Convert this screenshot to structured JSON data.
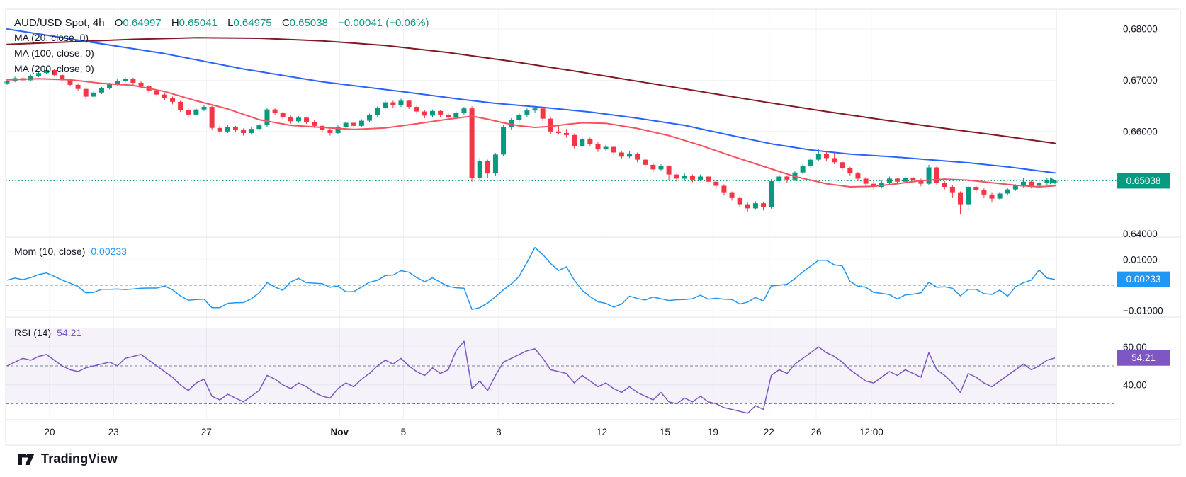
{
  "header": {
    "title": "AUD/USD Spot, 4h",
    "open_label": "O",
    "open": "0.64997",
    "high_label": "H",
    "high": "0.65041",
    "low_label": "L",
    "low": "0.64975",
    "close_label": "C",
    "close": "0.65038",
    "change": "+0.00041 (+0.06%)"
  },
  "overlays": {
    "ma20_label": "MA (20, close, 0)",
    "ma100_label": "MA (100, close, 0)",
    "ma200_label": "MA (200, close, 0)"
  },
  "momentum_legend": {
    "label": "Mom (10, close)",
    "value": "0.00233"
  },
  "rsi_legend": {
    "label": "RSI (14)",
    "value": "54.21"
  },
  "watermark": {
    "label": "TradingView"
  },
  "colors": {
    "up": "#089981",
    "down": "#F23645",
    "ma20": "#F7525F",
    "ma100": "#2962FF",
    "ma200": "#801922",
    "momentum": "#2196F3",
    "rsi": "#7E57C2",
    "rsi_band": "rgba(126,87,194,0.08)",
    "grid": "#F0F2F6",
    "border": "#E0E3EB",
    "dashed": "#758696",
    "dotted": "#089981",
    "axis_text": "#131722",
    "badge_text": "#FFFFFF",
    "badge_close": "#089981",
    "badge_mom": "#2196F3",
    "badge_rsi": "#7E57C2"
  },
  "price_axis": {
    "ticks": [
      {
        "label": "0.68000",
        "price": 6800
      },
      {
        "label": "0.67000",
        "price": 6700
      },
      {
        "label": "0.66000",
        "price": 6600
      },
      {
        "label": "0.64000",
        "price": 6400
      }
    ],
    "last_price_badge": {
      "label": "0.65038",
      "price": 6503.8
    }
  },
  "momentum_axis": {
    "ticks": [
      {
        "label": "0.01000",
        "value": 100
      },
      {
        "label": "−0.01000",
        "value": -100
      }
    ],
    "badge": {
      "label": "0.00233",
      "value": 23.3
    }
  },
  "rsi_axis": {
    "ticks": [
      {
        "label": "60.00",
        "value": 60
      },
      {
        "label": "40.00",
        "value": 40
      }
    ],
    "badge": {
      "label": "54.21",
      "value": 54.21
    },
    "levels_dashed": [
      70,
      50,
      30
    ],
    "band": [
      30,
      70
    ]
  },
  "time_axis": {
    "ticks": [
      {
        "label": "20",
        "i": 5.4
      },
      {
        "label": "23",
        "i": 13.5
      },
      {
        "label": "27",
        "i": 25.3
      },
      {
        "label": "Nov",
        "i": 42.2,
        "bold": true
      },
      {
        "label": "5",
        "i": 50.3
      },
      {
        "label": "8",
        "i": 62.4
      },
      {
        "label": "12",
        "i": 75.5
      },
      {
        "label": "15",
        "i": 83.5
      },
      {
        "label": "19",
        "i": 89.6
      },
      {
        "label": "22",
        "i": 96.7
      },
      {
        "label": "26",
        "i": 102.7
      },
      {
        "label": "12:00",
        "i": 109.7
      }
    ]
  },
  "chart_data": {
    "type": "candlestick",
    "pair": "AUD/USD Spot",
    "interval": "4h",
    "price_unit": "pips (value/10000 = price)",
    "ohlc_last": {
      "open": 0.64997,
      "high": 0.65041,
      "low": 0.64975,
      "close": 0.65038
    },
    "candles": [
      [
        6694,
        6701,
        6691,
        6698
      ],
      [
        6698,
        6707,
        6696,
        6704
      ],
      [
        6704,
        6706,
        6697,
        6700
      ],
      [
        6700,
        6711,
        6698,
        6708
      ],
      [
        6708,
        6717,
        6706,
        6714
      ],
      [
        6714,
        6725,
        6712,
        6720
      ],
      [
        6720,
        6722,
        6707,
        6710
      ],
      [
        6710,
        6713,
        6697,
        6700
      ],
      [
        6700,
        6703,
        6688,
        6691
      ],
      [
        6691,
        6694,
        6680,
        6683
      ],
      [
        6683,
        6685,
        6663,
        6668
      ],
      [
        6668,
        6679,
        6665,
        6676
      ],
      [
        6676,
        6687,
        6673,
        6684
      ],
      [
        6684,
        6695,
        6682,
        6692
      ],
      [
        6692,
        6702,
        6690,
        6699
      ],
      [
        6699,
        6706,
        6696,
        6703
      ],
      [
        6703,
        6705,
        6691,
        6695
      ],
      [
        6695,
        6698,
        6684,
        6688
      ],
      [
        6688,
        6691,
        6676,
        6680
      ],
      [
        6680,
        6683,
        6668,
        6672
      ],
      [
        6672,
        6675,
        6661,
        6665
      ],
      [
        6665,
        6668,
        6653,
        6658
      ],
      [
        6658,
        6660,
        6638,
        6642
      ],
      [
        6642,
        6645,
        6628,
        6633
      ],
      [
        6633,
        6646,
        6631,
        6643
      ],
      [
        6643,
        6652,
        6640,
        6648
      ],
      [
        6648,
        6650,
        6603,
        6607
      ],
      [
        6607,
        6612,
        6594,
        6600
      ],
      [
        6600,
        6612,
        6597,
        6609
      ],
      [
        6609,
        6611,
        6598,
        6603
      ],
      [
        6603,
        6606,
        6592,
        6597
      ],
      [
        6597,
        6608,
        6594,
        6605
      ],
      [
        6605,
        6615,
        6602,
        6612
      ],
      [
        6612,
        6646,
        6609,
        6643
      ],
      [
        6643,
        6645,
        6632,
        6636
      ],
      [
        6636,
        6639,
        6624,
        6628
      ],
      [
        6628,
        6631,
        6615,
        6620
      ],
      [
        6620,
        6630,
        6617,
        6627
      ],
      [
        6627,
        6629,
        6615,
        6619
      ],
      [
        6619,
        6622,
        6607,
        6611
      ],
      [
        6611,
        6614,
        6598,
        6603
      ],
      [
        6603,
        6606,
        6592,
        6597
      ],
      [
        6597,
        6612,
        6595,
        6609
      ],
      [
        6609,
        6620,
        6606,
        6617
      ],
      [
        6617,
        6619,
        6606,
        6611
      ],
      [
        6611,
        6624,
        6608,
        6621
      ],
      [
        6621,
        6635,
        6618,
        6632
      ],
      [
        6632,
        6649,
        6629,
        6646
      ],
      [
        6646,
        6661,
        6643,
        6657
      ],
      [
        6657,
        6660,
        6646,
        6651
      ],
      [
        6651,
        6664,
        6648,
        6660
      ],
      [
        6660,
        6662,
        6644,
        6648
      ],
      [
        6648,
        6651,
        6634,
        6639
      ],
      [
        6639,
        6642,
        6626,
        6631
      ],
      [
        6631,
        6643,
        6628,
        6640
      ],
      [
        6640,
        6642,
        6628,
        6633
      ],
      [
        6633,
        6636,
        6622,
        6627
      ],
      [
        6627,
        6639,
        6624,
        6636
      ],
      [
        6636,
        6648,
        6633,
        6645
      ],
      [
        6645,
        6649,
        6502,
        6510
      ],
      [
        6510,
        6548,
        6505,
        6542
      ],
      [
        6542,
        6545,
        6510,
        6518
      ],
      [
        6518,
        6558,
        6514,
        6555
      ],
      [
        6555,
        6612,
        6552,
        6608
      ],
      [
        6608,
        6626,
        6604,
        6622
      ],
      [
        6622,
        6637,
        6618,
        6633
      ],
      [
        6633,
        6645,
        6628,
        6641
      ],
      [
        6641,
        6650,
        6636,
        6645
      ],
      [
        6645,
        6648,
        6620,
        6625
      ],
      [
        6625,
        6628,
        6595,
        6600
      ],
      [
        6600,
        6613,
        6594,
        6597
      ],
      [
        6597,
        6605,
        6588,
        6593
      ],
      [
        6593,
        6596,
        6567,
        6572
      ],
      [
        6572,
        6589,
        6569,
        6585
      ],
      [
        6585,
        6588,
        6571,
        6576
      ],
      [
        6576,
        6579,
        6560,
        6565
      ],
      [
        6565,
        6574,
        6561,
        6570
      ],
      [
        6570,
        6572,
        6554,
        6559
      ],
      [
        6559,
        6562,
        6546,
        6551
      ],
      [
        6551,
        6561,
        6548,
        6557
      ],
      [
        6557,
        6559,
        6540,
        6545
      ],
      [
        6545,
        6548,
        6530,
        6535
      ],
      [
        6535,
        6538,
        6521,
        6526
      ],
      [
        6526,
        6536,
        6523,
        6532
      ],
      [
        6532,
        6534,
        6504,
        6516
      ],
      [
        6516,
        6519,
        6502,
        6508
      ],
      [
        6508,
        6518,
        6505,
        6514
      ],
      [
        6514,
        6516,
        6501,
        6506
      ],
      [
        6506,
        6516,
        6503,
        6512
      ],
      [
        6512,
        6514,
        6497,
        6502
      ],
      [
        6502,
        6505,
        6489,
        6494
      ],
      [
        6494,
        6497,
        6475,
        6480
      ],
      [
        6480,
        6483,
        6465,
        6470
      ],
      [
        6470,
        6473,
        6452,
        6458
      ],
      [
        6458,
        6461,
        6444,
        6450
      ],
      [
        6450,
        6464,
        6447,
        6460
      ],
      [
        6460,
        6462,
        6446,
        6452
      ],
      [
        6452,
        6507,
        6449,
        6503
      ],
      [
        6503,
        6516,
        6500,
        6512
      ],
      [
        6512,
        6514,
        6500,
        6506
      ],
      [
        6506,
        6524,
        6503,
        6520
      ],
      [
        6520,
        6536,
        6517,
        6532
      ],
      [
        6532,
        6549,
        6529,
        6545
      ],
      [
        6545,
        6565,
        6542,
        6556
      ],
      [
        6556,
        6560,
        6543,
        6548
      ],
      [
        6548,
        6558,
        6536,
        6540
      ],
      [
        6540,
        6543,
        6523,
        6528
      ],
      [
        6528,
        6531,
        6513,
        6518
      ],
      [
        6518,
        6521,
        6503,
        6508
      ],
      [
        6508,
        6511,
        6493,
        6498
      ],
      [
        6498,
        6503,
        6487,
        6492
      ],
      [
        6492,
        6504,
        6489,
        6500
      ],
      [
        6500,
        6512,
        6497,
        6508
      ],
      [
        6508,
        6510,
        6497,
        6502
      ],
      [
        6502,
        6514,
        6499,
        6510
      ],
      [
        6510,
        6512,
        6500,
        6505
      ],
      [
        6505,
        6508,
        6493,
        6498
      ],
      [
        6498,
        6535,
        6495,
        6530
      ],
      [
        6530,
        6532,
        6495,
        6500
      ],
      [
        6500,
        6503,
        6487,
        6492
      ],
      [
        6492,
        6495,
        6470,
        6480
      ],
      [
        6480,
        6483,
        6438,
        6458
      ],
      [
        6458,
        6496,
        6445,
        6492
      ],
      [
        6492,
        6494,
        6480,
        6486
      ],
      [
        6486,
        6489,
        6470,
        6477
      ],
      [
        6477,
        6480,
        6463,
        6469
      ],
      [
        6469,
        6482,
        6466,
        6479
      ],
      [
        6479,
        6490,
        6476,
        6487
      ],
      [
        6487,
        6497,
        6484,
        6494
      ],
      [
        6494,
        6510,
        6491,
        6502
      ],
      [
        6502,
        6504,
        6489,
        6494
      ],
      [
        6494,
        6502,
        6491,
        6499
      ],
      [
        6499,
        6509,
        6496,
        6506
      ],
      [
        6500,
        6504,
        6497,
        6504
      ]
    ],
    "ma20_points": [
      [
        0,
        6701
      ],
      [
        4,
        6703
      ],
      [
        8,
        6701
      ],
      [
        12,
        6694
      ],
      [
        16,
        6690
      ],
      [
        20,
        6678
      ],
      [
        24,
        6660
      ],
      [
        28,
        6644
      ],
      [
        32,
        6623
      ],
      [
        36,
        6612
      ],
      [
        40,
        6608
      ],
      [
        44,
        6604
      ],
      [
        48,
        6607
      ],
      [
        52,
        6615
      ],
      [
        56,
        6624
      ],
      [
        59,
        6630
      ],
      [
        61,
        6624
      ],
      [
        63,
        6617
      ],
      [
        65,
        6611
      ],
      [
        67,
        6608
      ],
      [
        69,
        6610
      ],
      [
        71,
        6614
      ],
      [
        73,
        6617
      ],
      [
        76,
        6616
      ],
      [
        80,
        6606
      ],
      [
        84,
        6592
      ],
      [
        88,
        6573
      ],
      [
        92,
        6552
      ],
      [
        96,
        6532
      ],
      [
        100,
        6512
      ],
      [
        104,
        6498
      ],
      [
        107,
        6492
      ],
      [
        110,
        6493
      ],
      [
        113,
        6498
      ],
      [
        116,
        6504
      ],
      [
        119,
        6507
      ],
      [
        122,
        6505
      ],
      [
        125,
        6500
      ],
      [
        128,
        6495
      ],
      [
        131,
        6492
      ],
      [
        133,
        6494
      ]
    ],
    "ma100_points": [
      [
        0,
        6800
      ],
      [
        10,
        6776
      ],
      [
        20,
        6752
      ],
      [
        30,
        6722
      ],
      [
        40,
        6697
      ],
      [
        50,
        6678
      ],
      [
        58,
        6662
      ],
      [
        62,
        6655
      ],
      [
        68,
        6647
      ],
      [
        74,
        6638
      ],
      [
        80,
        6626
      ],
      [
        86,
        6612
      ],
      [
        92,
        6592
      ],
      [
        97,
        6576
      ],
      [
        102,
        6564
      ],
      [
        107,
        6556
      ],
      [
        112,
        6551
      ],
      [
        117,
        6545
      ],
      [
        122,
        6539
      ],
      [
        127,
        6531
      ],
      [
        131,
        6523
      ],
      [
        133,
        6519
      ]
    ],
    "ma200_points": [
      [
        0,
        6770
      ],
      [
        8,
        6775
      ],
      [
        16,
        6780
      ],
      [
        24,
        6783
      ],
      [
        32,
        6782
      ],
      [
        40,
        6777
      ],
      [
        48,
        6768
      ],
      [
        56,
        6754
      ],
      [
        64,
        6737
      ],
      [
        72,
        6718
      ],
      [
        80,
        6698
      ],
      [
        88,
        6678
      ],
      [
        96,
        6658
      ],
      [
        104,
        6639
      ],
      [
        112,
        6621
      ],
      [
        120,
        6604
      ],
      [
        126,
        6592
      ],
      [
        133,
        6577
      ]
    ],
    "momentum": [
      20,
      28,
      22,
      30,
      42,
      48,
      35,
      20,
      8,
      -5,
      -30,
      -28,
      -16,
      -16,
      -15,
      -17,
      -15,
      -12,
      -11,
      -11,
      -3,
      -18,
      -42,
      -59,
      -56,
      -55,
      -88,
      -88,
      -71,
      -69,
      -68,
      -53,
      -30,
      10,
      -7,
      -20,
      13,
      27,
      10,
      8,
      6,
      -8,
      -3,
      -26,
      -25,
      -7,
      12,
      19,
      38,
      40,
      57,
      51,
      30,
      14,
      29,
      12,
      -5,
      -10,
      -12,
      -95,
      -88,
      -70,
      -45,
      -18,
      5,
      35,
      90,
      148,
      120,
      85,
      58,
      72,
      20,
      -20,
      -45,
      -65,
      -71,
      -86,
      -74,
      -43,
      -52,
      -58,
      -46,
      -53,
      -60,
      -57,
      -56,
      -53,
      -39,
      -55,
      -51,
      -55,
      -56,
      -74,
      -66,
      -48,
      -62,
      -3,
      0,
      4,
      26,
      52,
      75,
      98,
      98,
      80,
      76,
      15,
      -4,
      -8,
      -28,
      -32,
      -37,
      -54,
      -38,
      -35,
      -30,
      12,
      -8,
      -6,
      -12,
      -42,
      -16,
      -16,
      -33,
      -36,
      -19,
      -43,
      -6,
      10,
      20,
      60,
      28,
      23
    ],
    "rsi": [
      50,
      52,
      54,
      53,
      55,
      56,
      53,
      50,
      48,
      47,
      49,
      50,
      51,
      52,
      50,
      54,
      55,
      56,
      53,
      50,
      47,
      44,
      40,
      37,
      41,
      43,
      34,
      32,
      35,
      33,
      31,
      34,
      37,
      45,
      43,
      40,
      38,
      41,
      39,
      36,
      34,
      33,
      38,
      41,
      39,
      43,
      46,
      50,
      53,
      51,
      54,
      50,
      47,
      45,
      49,
      46,
      48,
      58,
      63,
      38,
      42,
      37,
      45,
      52,
      54,
      56,
      58,
      59,
      54,
      48,
      47,
      46,
      41,
      45,
      42,
      39,
      41,
      38,
      36,
      39,
      36,
      34,
      32,
      36,
      31,
      30,
      33,
      31,
      34,
      31,
      30,
      28,
      27,
      26,
      25,
      29,
      27,
      45,
      48,
      46,
      51,
      54,
      57,
      60,
      57,
      55,
      52,
      48,
      45,
      42,
      41,
      44,
      47,
      45,
      48,
      46,
      44,
      57,
      48,
      45,
      41,
      36,
      46,
      44,
      41,
      39,
      42,
      45,
      48,
      51,
      48,
      50,
      53,
      54.21
    ],
    "last_close": 6503.8
  }
}
